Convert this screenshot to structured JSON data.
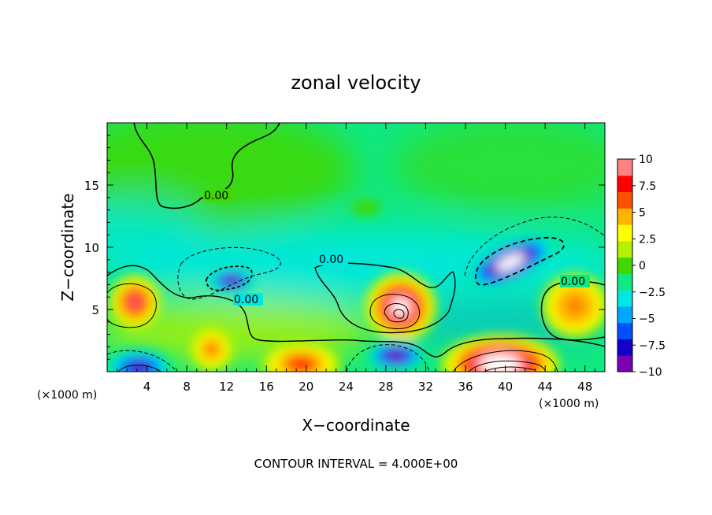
{
  "chart_data": {
    "type": "heatmap",
    "title": "zonal velocity",
    "xlabel": "X−coordinate",
    "ylabel": "Z−coordinate",
    "x_unit": "(×1000 m)",
    "y_unit": "(×1000 m)",
    "xlim": [
      0,
      50
    ],
    "ylim": [
      0,
      20
    ],
    "x_ticks": [
      "4",
      "8",
      "12",
      "16",
      "20",
      "24",
      "28",
      "32",
      "36",
      "40",
      "44",
      "48"
    ],
    "y_ticks": [
      "5",
      "10",
      "15"
    ],
    "colorbar": {
      "min": -10,
      "max": 10,
      "ticks": [
        "10",
        "7.5",
        "5",
        "2.5",
        "0",
        "−2.5",
        "−5",
        "−7.5",
        "−10"
      ],
      "colors": [
        "#7a00b4",
        "#1200c8",
        "#0050ff",
        "#00a8ff",
        "#00e8e0",
        "#10e880",
        "#40d800",
        "#b4f000",
        "#ffff00",
        "#ffb400",
        "#ff5000",
        "#ff0000",
        "#ff8080"
      ]
    },
    "contour_labels": [
      "0.00",
      "0.00",
      "0.00",
      "0.00"
    ],
    "footer": "CONTOUR INTERVAL = 4.000E+00",
    "features": [
      {
        "x": 29.5,
        "y": 5.2,
        "value": 12,
        "rx": 3.6,
        "ry": 2.8
      },
      {
        "x": 40.5,
        "y": 8.8,
        "value": -13,
        "rx": 4.8,
        "ry": 1.6,
        "angle": -25
      },
      {
        "x": 12.5,
        "y": 7.3,
        "value": -10,
        "rx": 2.4,
        "ry": 1.0
      },
      {
        "x": 2.8,
        "y": 5.6,
        "value": 8.5,
        "rx": 2.6,
        "ry": 2.2
      },
      {
        "x": 39.5,
        "y": 0.6,
        "value": 13,
        "rx": 6.0,
        "ry": 2.4
      },
      {
        "x": 3.2,
        "y": 0.3,
        "value": -9,
        "rx": 3.4,
        "ry": 1.6
      },
      {
        "x": 29.0,
        "y": 1.3,
        "value": -10,
        "rx": 3.0,
        "ry": 1.3
      },
      {
        "x": 19.5,
        "y": 0.6,
        "value": 8,
        "rx": 4.0,
        "ry": 1.8
      },
      {
        "x": 47.0,
        "y": 5.3,
        "value": 6.5,
        "rx": 3.4,
        "ry": 2.6
      },
      {
        "x": 10.5,
        "y": 1.8,
        "value": 6,
        "rx": 2.2,
        "ry": 1.8
      },
      {
        "x": 26.0,
        "y": 13.2,
        "value": -0.5,
        "rx": 1.5,
        "ry": 0.6
      }
    ]
  }
}
